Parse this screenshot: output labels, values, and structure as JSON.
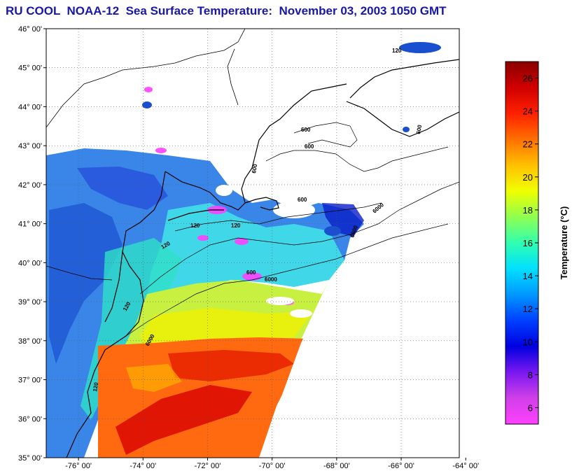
{
  "title": "RU COOL  NOAA-12  Sea Surface Temperature:  November 03, 2003 1050 GMT",
  "map": {
    "lat_ticks": [
      "46° 00'",
      "45° 00'",
      "44° 00'",
      "43° 00'",
      "42° 00'",
      "41° 00'",
      "40° 00'",
      "39° 00'",
      "38° 00'",
      "37° 00'",
      "36° 00'",
      "35° 00'"
    ],
    "lat_values": [
      46,
      45,
      44,
      43,
      42,
      41,
      40,
      39,
      38,
      37,
      36,
      35
    ],
    "lon_ticks": [
      "-76° 00'",
      "-74° 00'",
      "-72° 00'",
      "-70° 00'",
      "-68° 00'",
      "-66° 00'",
      "-64° 00'"
    ],
    "lon_values": [
      -76,
      -74,
      -72,
      -70,
      -68,
      -66,
      -64
    ],
    "lon_range": [
      -77,
      -64.2
    ],
    "lat_range": [
      35,
      46
    ],
    "contour_labels": [
      "120",
      "120",
      "120",
      "120",
      "600",
      "600",
      "600",
      "600",
      "600",
      "6000",
      "6000",
      "6000",
      "600",
      "6000",
      "120",
      "120"
    ]
  },
  "colorbar": {
    "title": "Temperature (°C)",
    "tick_labels": [
      "26",
      "24",
      "22",
      "20",
      "18",
      "16",
      "14",
      "12",
      "10",
      "8",
      "6"
    ],
    "tick_values": [
      26,
      24,
      22,
      20,
      18,
      16,
      14,
      12,
      10,
      8,
      6
    ],
    "range": [
      5,
      27
    ],
    "colors": [
      "#ff40ff",
      "#d040e8",
      "#7a18f0",
      "#0000e0",
      "#0040ff",
      "#0098ff",
      "#00e0ff",
      "#30ffb0",
      "#90ff50",
      "#f0ff00",
      "#ffc000",
      "#ff7000",
      "#ff2000",
      "#d00000",
      "#8a0000"
    ]
  }
}
